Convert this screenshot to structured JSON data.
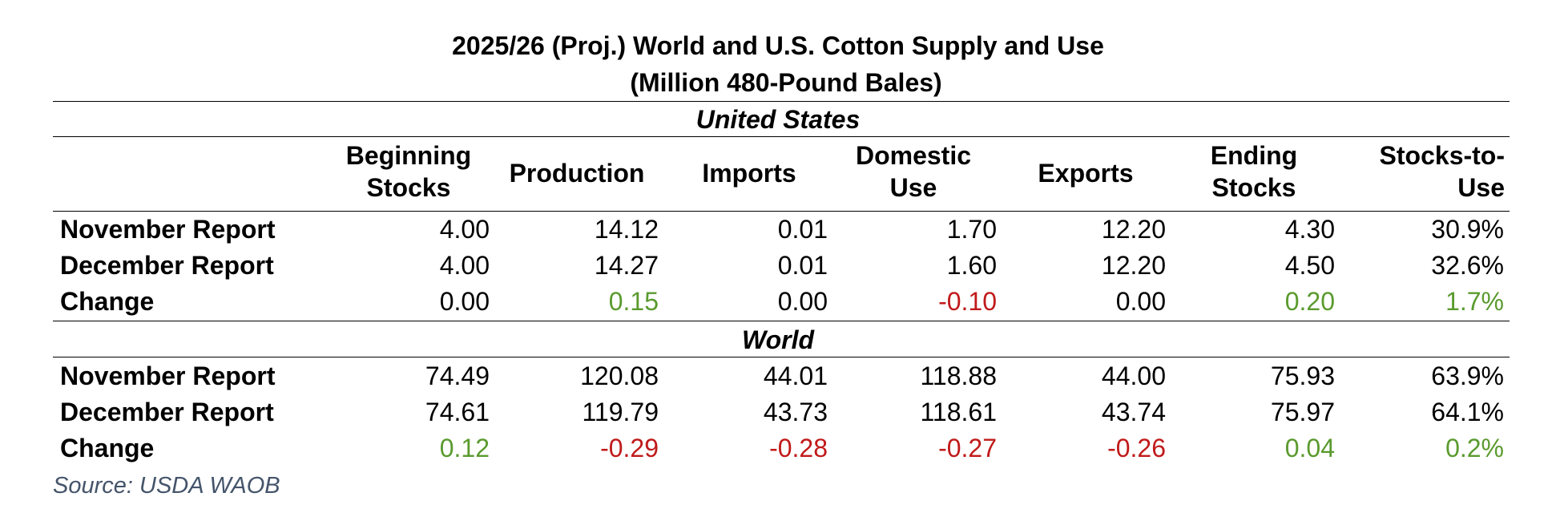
{
  "title_line1": "2025/26 (Proj.) World and U.S. Cotton Supply and Use",
  "title_line2": "(Million 480-Pound Bales)",
  "columns": [
    {
      "line1": "Beginning",
      "line2": "Stocks"
    },
    {
      "line1": "Production",
      "line2": ""
    },
    {
      "line1": "Imports",
      "line2": ""
    },
    {
      "line1": "Domestic",
      "line2": "Use"
    },
    {
      "line1": "Exports",
      "line2": ""
    },
    {
      "line1": "Ending",
      "line2": "Stocks"
    },
    {
      "line1": "Stocks-to-",
      "line2": "Use"
    }
  ],
  "united_states": {
    "label": "United States",
    "rows": [
      {
        "label": "November Report",
        "values": [
          "4.00",
          "14.12",
          "0.01",
          "1.70",
          "12.20",
          "4.30",
          "30.9%"
        ]
      },
      {
        "label": "December Report",
        "values": [
          "4.00",
          "14.27",
          "0.01",
          "1.60",
          "12.20",
          "4.50",
          "32.6%"
        ]
      },
      {
        "label": "Change",
        "values": [
          "0.00",
          "0.15",
          "0.00",
          "-0.10",
          "0.00",
          "0.20",
          "1.7%"
        ]
      }
    ]
  },
  "world": {
    "label": "World",
    "rows": [
      {
        "label": "November Report",
        "values": [
          "74.49",
          "120.08",
          "44.01",
          "118.88",
          "44.00",
          "75.93",
          "63.9%"
        ]
      },
      {
        "label": "December Report",
        "values": [
          "74.61",
          "119.79",
          "43.73",
          "118.61",
          "43.74",
          "75.97",
          "64.1%"
        ]
      },
      {
        "label": "Change",
        "values": [
          "0.12",
          "-0.29",
          "-0.28",
          "-0.27",
          "-0.26",
          "0.04",
          "0.2%"
        ]
      }
    ]
  },
  "source": "Source: USDA WAOB",
  "colors": {
    "positive_change": "#5a9a2e",
    "negative_change": "#c01a1a",
    "source_text": "#44546a"
  }
}
